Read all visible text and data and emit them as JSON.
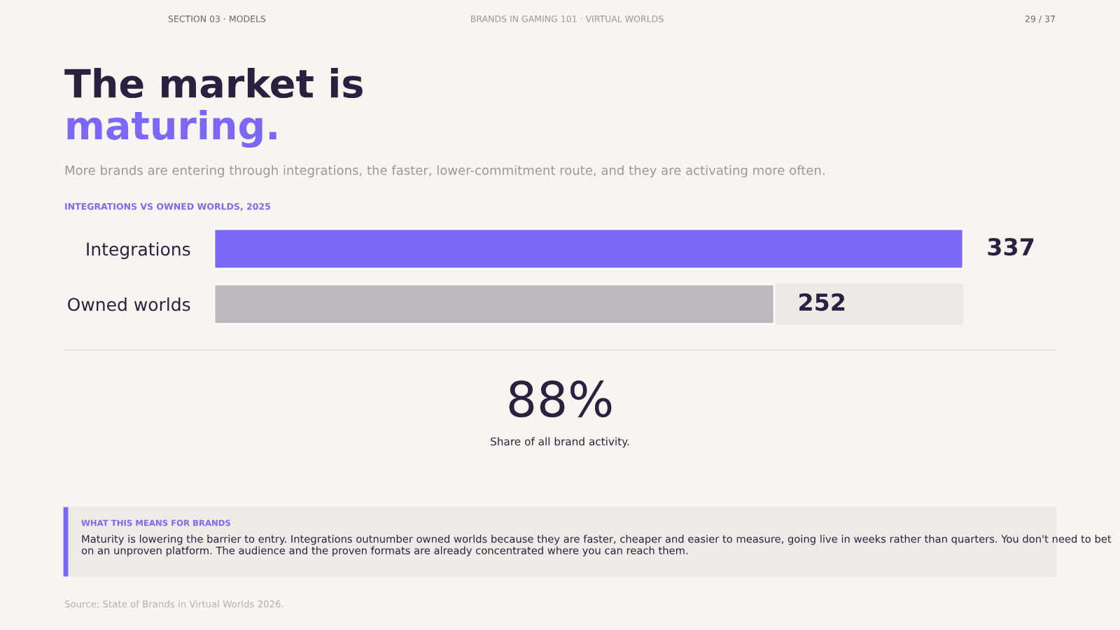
{
  "chart_data": {
    "type": "bar",
    "orientation": "horizontal",
    "title": "The market is maturing.",
    "subtitle": "More brands are entering through integrations, the faster, lower-commitment route, and they are activating more often.",
    "categories": [
      "Integrations",
      "Owned worlds"
    ],
    "values": [
      337,
      252
    ],
    "colors": [
      "#7b68f6",
      "#bdb8bf"
    ],
    "xlim": [
      0,
      337
    ],
    "tick_labels": "y",
    "grid": false,
    "data_labels": true,
    "annotations": [
      "SECTION 03 · MODELS",
      "BRANDS IN GAMING 101 · VIRTUAL WORLDS",
      "29 / 37",
      "INTEGRATIONS VS OWNED WORLDS, 2025",
      "88%",
      "Share of all brand activity.",
      "WHAT THIS MEANS FOR BRANDS",
      "Maturity is lowering the barrier to entry. Integrations outnumber owned worlds because they are faster, cheaper and easier to measure, going live in weeks rather than quarters. You don't need to bet on an unproven platform. The audience and the proven formats are already concentrated where you can reach them.",
      "Source: State of Brands in Virtual Worlds 2026."
    ]
  }
}
